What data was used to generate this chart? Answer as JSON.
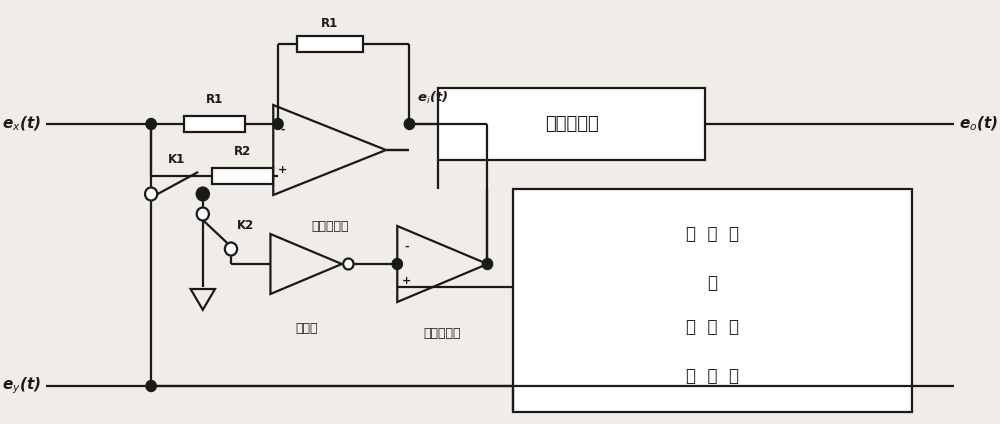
{
  "bg_color": "#f0ede8",
  "line_color": "#1a1a1a",
  "lw": 1.6,
  "fig_w": 10.0,
  "fig_h": 4.24,
  "labels": {
    "ex": "e$_x$(t)",
    "ey": "e$_y$(t)",
    "ei": "e$_i$(t)",
    "eo": "e$_o$(t)",
    "R1_top": "R1",
    "R1_mid": "R1",
    "R2_mid": "R2",
    "opamp_label": "运算放大器",
    "lpf_label": "低通滤波器",
    "inverter_label": "反相器",
    "comparator_label": "电压比较器",
    "saw_line1": "锯  齿  波",
    "saw_line2": "或",
    "saw_line3": "三  角  波",
    "saw_line4": "发  生  器",
    "K1": "K1",
    "K2": "K2"
  }
}
